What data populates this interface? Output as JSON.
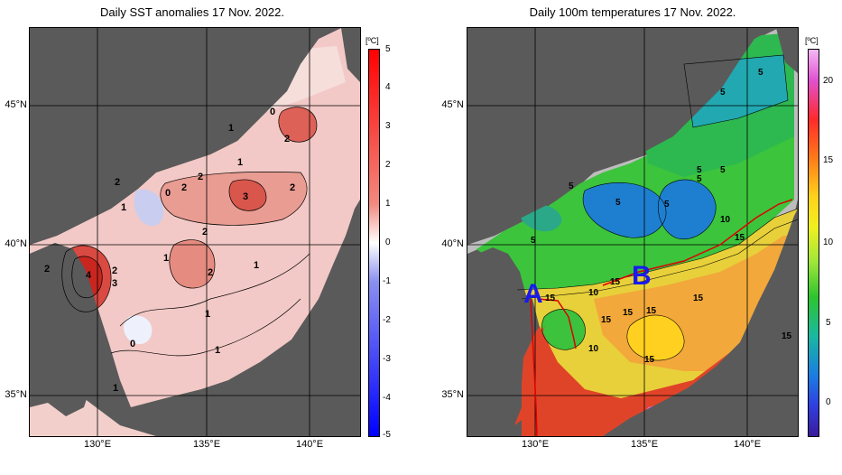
{
  "left": {
    "title": "Daily SST anomalies 17 Nov. 2022.",
    "unit": "[ºC]",
    "lat_labels": [
      "45°N",
      "40°N",
      "35°N"
    ],
    "lon_labels": [
      "130°E",
      "135°E",
      "140°E"
    ],
    "colorbar_ticks": [
      "5",
      "4",
      "3",
      "2",
      "1",
      "0",
      "-1",
      "-2",
      "-3",
      "-4",
      "-5"
    ],
    "contour_labels": [
      "0",
      "2",
      "1",
      "2",
      "1",
      "2",
      "1",
      "0",
      "2",
      "2",
      "3",
      "2",
      "1",
      "2",
      "4",
      "2",
      "3",
      "1",
      "2",
      "1",
      "1",
      "0",
      "1"
    ]
  },
  "right": {
    "title": "Daily 100m temperatures 17 Nov. 2022.",
    "unit": "[ºC]",
    "lat_labels": [
      "45°N",
      "40°N",
      "35°N"
    ],
    "lon_labels": [
      "130°E",
      "135°E",
      "140°E"
    ],
    "colorbar_ticks": [
      "20",
      "15",
      "10",
      "5",
      "0"
    ],
    "contour_labels": [
      "5",
      "5",
      "5",
      "5",
      "5",
      "5",
      "5",
      "5",
      "10",
      "15",
      "5",
      "10",
      "15",
      "15",
      "15",
      "15",
      "15",
      "15",
      "10",
      "15",
      "15"
    ],
    "markers": {
      "a": "A",
      "b": "B"
    }
  },
  "colors": {
    "land": "#5a5a5a",
    "coast_shelf": "#bdbdbd",
    "section_line": "#dd0000",
    "marker_text": "#1a1aee"
  }
}
